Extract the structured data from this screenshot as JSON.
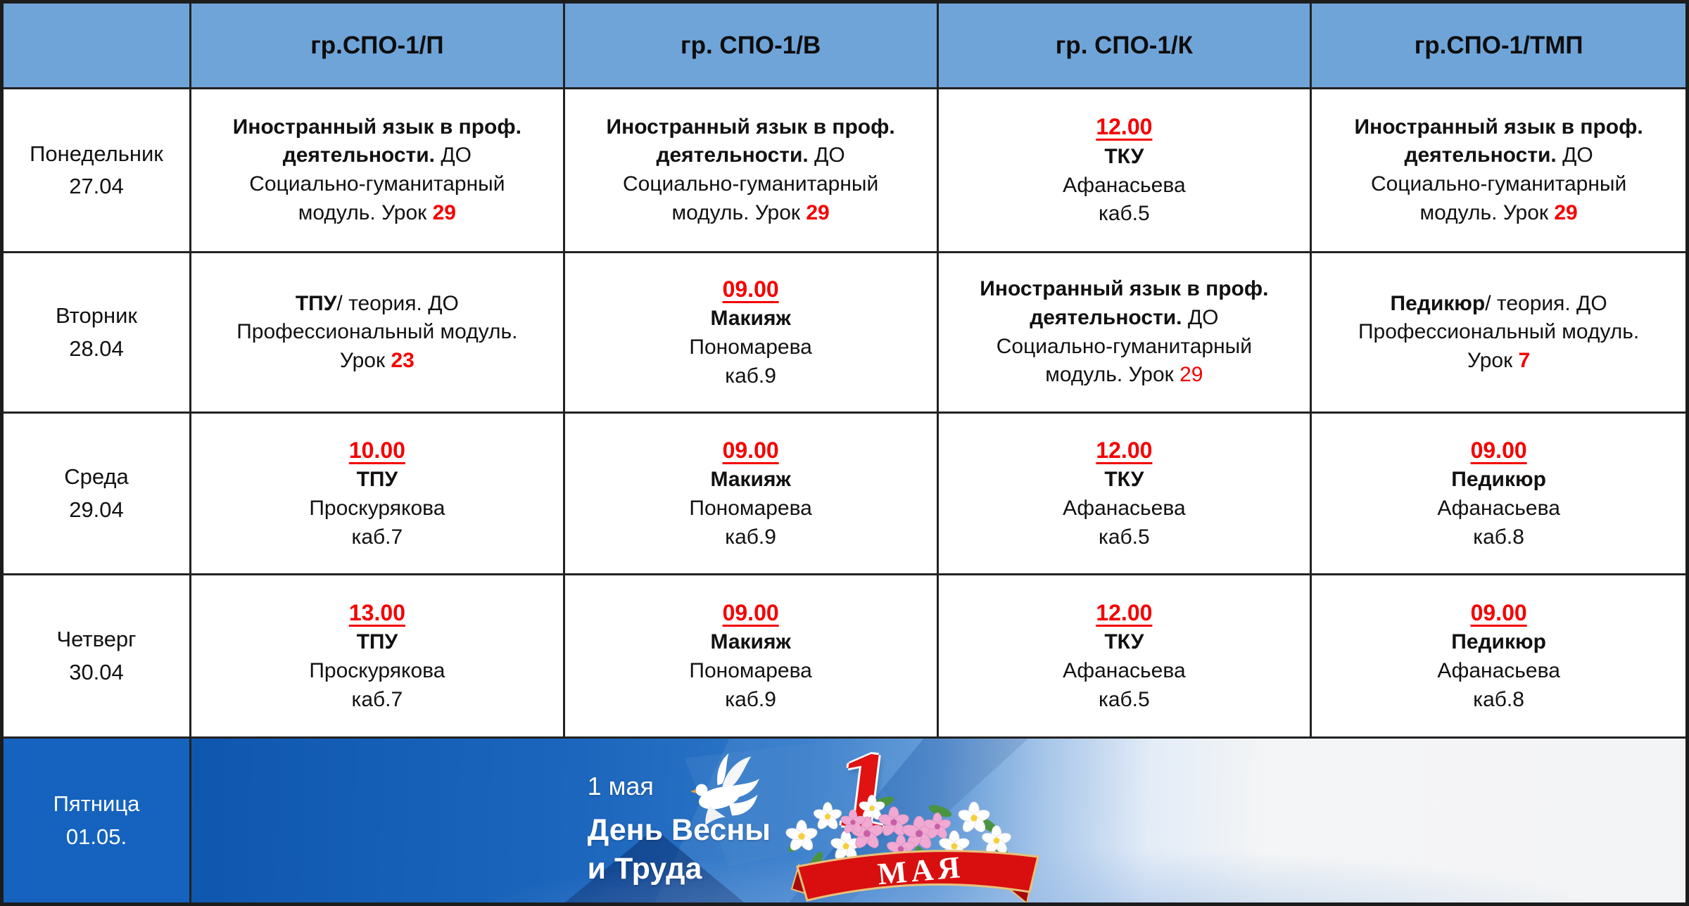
{
  "header": {
    "group_columns": [
      "гр.СПО-1/П",
      "гр. СПО-1/В",
      "гр. СПО-1/К",
      "гр.СПО-1/ТМП"
    ]
  },
  "days": [
    {
      "name": "Понедельник",
      "date": "27.04"
    },
    {
      "name": "Вторник",
      "date": "28.04"
    },
    {
      "name": "Среда",
      "date": "29.04"
    },
    {
      "name": "Четверг",
      "date": "30.04"
    },
    {
      "name": "Пятница",
      "date": "01.05."
    }
  ],
  "schedule": [
    [
      [
        [
          {
            "t": "Иностранный язык в проф.",
            "b": true
          }
        ],
        [
          {
            "t": "деятельности.",
            "b": true
          },
          {
            "t": " ДО"
          }
        ],
        [
          {
            "t": "Социально-гуманитарный"
          }
        ],
        [
          {
            "t": "модуль. Урок "
          },
          {
            "t": "29",
            "b": true,
            "r": true
          }
        ]
      ],
      [
        [
          {
            "t": "Иностранный язык в проф.",
            "b": true
          }
        ],
        [
          {
            "t": "деятельности.",
            "b": true
          },
          {
            "t": " ДО"
          }
        ],
        [
          {
            "t": "Социально-гуманитарный"
          }
        ],
        [
          {
            "t": "модуль. Урок "
          },
          {
            "t": "29",
            "b": true,
            "r": true
          }
        ]
      ],
      [
        [
          {
            "t": "12.00",
            "b": true,
            "r": true,
            "u": true
          }
        ],
        [
          {
            "t": "ТКУ",
            "b": true
          }
        ],
        [
          {
            "t": "Афанасьева"
          }
        ],
        [
          {
            "t": "каб.5"
          }
        ]
      ],
      [
        [
          {
            "t": "Иностранный язык в проф.",
            "b": true
          }
        ],
        [
          {
            "t": "деятельности.",
            "b": true
          },
          {
            "t": " ДО"
          }
        ],
        [
          {
            "t": "Социально-гуманитарный"
          }
        ],
        [
          {
            "t": "модуль. Урок "
          },
          {
            "t": "29",
            "b": true,
            "r": true
          }
        ]
      ]
    ],
    [
      [
        [
          {
            "t": "ТПУ",
            "b": true
          },
          {
            "t": "/ теория. ДО"
          }
        ],
        [
          {
            "t": "Профессиональный модуль."
          }
        ],
        [
          {
            "t": "Урок "
          },
          {
            "t": "23",
            "b": true,
            "r": true
          }
        ]
      ],
      [
        [
          {
            "t": "09.00",
            "b": true,
            "r": true,
            "u": true
          }
        ],
        [
          {
            "t": "Макияж",
            "b": true
          }
        ],
        [
          {
            "t": "Пономарева"
          }
        ],
        [
          {
            "t": "каб.9"
          }
        ]
      ],
      [
        [
          {
            "t": "Иностранный язык в проф.",
            "b": true
          }
        ],
        [
          {
            "t": "деятельности.",
            "b": true
          },
          {
            "t": " ДО"
          }
        ],
        [
          {
            "t": "Социально-гуманитарный"
          }
        ],
        [
          {
            "t": "модуль. Урок "
          },
          {
            "t": "29",
            "r": true
          }
        ]
      ],
      [
        [
          {
            "t": "Педикюр",
            "b": true
          },
          {
            "t": "/ теория. ДО"
          }
        ],
        [
          {
            "t": "Профессиональный модуль."
          }
        ],
        [
          {
            "t": "Урок "
          },
          {
            "t": "7",
            "b": true,
            "r": true
          }
        ]
      ]
    ],
    [
      [
        [
          {
            "t": "10.00",
            "b": true,
            "r": true,
            "u": true
          }
        ],
        [
          {
            "t": "ТПУ",
            "b": true
          }
        ],
        [
          {
            "t": "Проскурякова"
          }
        ],
        [
          {
            "t": "каб.7"
          }
        ]
      ],
      [
        [
          {
            "t": "09.00",
            "b": true,
            "r": true,
            "u": true
          }
        ],
        [
          {
            "t": "Макияж",
            "b": true
          }
        ],
        [
          {
            "t": "Пономарева"
          }
        ],
        [
          {
            "t": "каб.9"
          }
        ]
      ],
      [
        [
          {
            "t": "12.00",
            "b": true,
            "r": true,
            "u": true
          }
        ],
        [
          {
            "t": "ТКУ",
            "b": true
          }
        ],
        [
          {
            "t": "Афанасьева"
          }
        ],
        [
          {
            "t": "каб.5"
          }
        ]
      ],
      [
        [
          {
            "t": "09.00",
            "b": true,
            "r": true,
            "u": true
          }
        ],
        [
          {
            "t": "Педикюр",
            "b": true
          }
        ],
        [
          {
            "t": "Афанасьева"
          }
        ],
        [
          {
            "t": "каб.8"
          }
        ]
      ]
    ],
    [
      [
        [
          {
            "t": "13.00",
            "b": true,
            "r": true,
            "u": true
          }
        ],
        [
          {
            "t": "ТПУ",
            "b": true
          }
        ],
        [
          {
            "t": "Проскурякова"
          }
        ],
        [
          {
            "t": "каб.7"
          }
        ]
      ],
      [
        [
          {
            "t": "09.00",
            "b": true,
            "r": true,
            "u": true
          }
        ],
        [
          {
            "t": "Макияж",
            "b": true
          }
        ],
        [
          {
            "t": "Пономарева"
          }
        ],
        [
          {
            "t": "каб.9"
          }
        ]
      ],
      [
        [
          {
            "t": "12.00",
            "b": true,
            "r": true,
            "u": true
          }
        ],
        [
          {
            "t": "ТКУ",
            "b": true
          }
        ],
        [
          {
            "t": "Афанасьева"
          }
        ],
        [
          {
            "t": "каб.5"
          }
        ]
      ],
      [
        [
          {
            "t": "09.00",
            "b": true,
            "r": true,
            "u": true
          }
        ],
        [
          {
            "t": "Педикюр",
            "b": true
          }
        ],
        [
          {
            "t": "Афанасьева"
          }
        ],
        [
          {
            "t": "каб.8"
          }
        ]
      ]
    ]
  ],
  "banner": {
    "small_date": "1 мая",
    "title_line1": "День Весны",
    "title_line2": "и Труда",
    "numeral": "1",
    "ribbon_text": "МАЯ"
  },
  "colors": {
    "header_bg": "#6FA4D8",
    "friday_blue": "#1563BE",
    "accent_red": "#F40000",
    "border": "#222222",
    "banner_deep_blue": "#0F57AE"
  }
}
